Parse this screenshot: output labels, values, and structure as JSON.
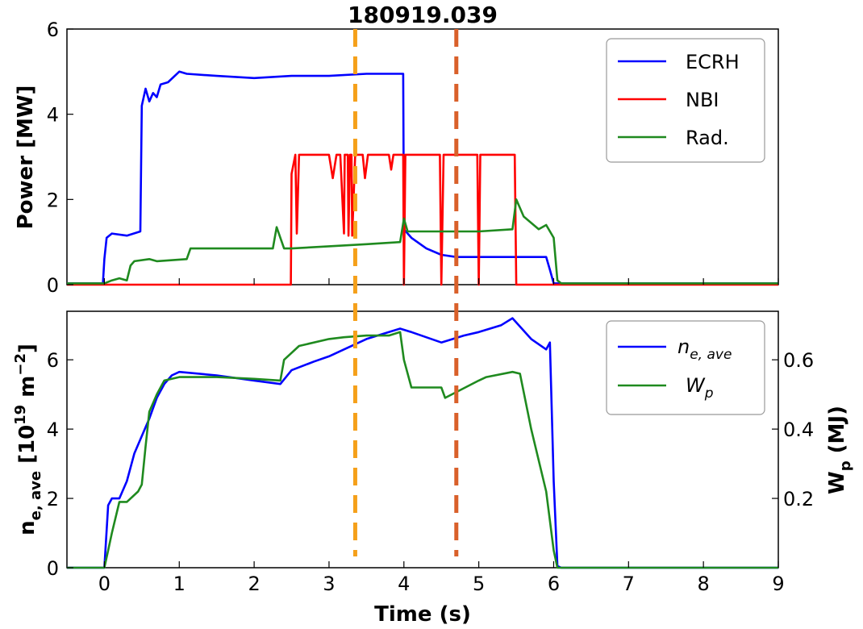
{
  "chart_data": [
    {
      "type": "line",
      "title": "180919.039",
      "xlabel": "",
      "ylabel": "Power [MW]",
      "xlim": [
        -0.5,
        9
      ],
      "ylim": [
        0,
        6
      ],
      "xticks": [
        "0",
        "1",
        "2",
        "3",
        "4",
        "5",
        "6",
        "7",
        "8",
        "9"
      ],
      "yticks": [
        "0",
        "2",
        "4",
        "6"
      ],
      "legend_position": "top-right",
      "legend": [
        "ECRH",
        "NBI",
        "Rad."
      ],
      "grid": false,
      "series": [
        {
          "name": "ECRH",
          "color": "#0000ff",
          "x": [
            -0.5,
            -0.02,
            0.0,
            0.03,
            0.1,
            0.3,
            0.48,
            0.5,
            0.55,
            0.6,
            0.65,
            0.7,
            0.75,
            0.85,
            1.0,
            1.1,
            1.5,
            2.0,
            2.5,
            3.0,
            3.5,
            3.99,
            4.0,
            4.1,
            4.3,
            4.5,
            4.7,
            5.0,
            5.5,
            5.9,
            5.95,
            6.0,
            6.2,
            7,
            8,
            9
          ],
          "y": [
            0.03,
            0.03,
            0.6,
            1.1,
            1.2,
            1.15,
            1.25,
            4.2,
            4.6,
            4.3,
            4.5,
            4.4,
            4.7,
            4.75,
            5.0,
            4.95,
            4.9,
            4.85,
            4.9,
            4.9,
            4.95,
            4.95,
            1.3,
            1.1,
            0.85,
            0.7,
            0.65,
            0.65,
            0.65,
            0.65,
            0.35,
            0.03,
            0.03,
            0.03,
            0.03,
            0.03
          ]
        },
        {
          "name": "NBI",
          "color": "#ff0000",
          "x": [
            -0.5,
            2.49,
            2.5,
            2.55,
            2.57,
            2.6,
            2.65,
            3.0,
            3.05,
            3.1,
            3.15,
            3.2,
            3.21,
            3.25,
            3.26,
            3.28,
            3.3,
            3.31,
            3.35,
            3.45,
            3.48,
            3.52,
            3.8,
            3.83,
            3.86,
            3.99,
            4.0,
            4.02,
            4.48,
            4.5,
            4.53,
            4.98,
            5.0,
            5.02,
            5.48,
            5.5,
            6.0,
            9
          ],
          "y": [
            0.0,
            0.0,
            2.6,
            3.05,
            1.2,
            3.05,
            3.05,
            3.05,
            2.5,
            3.05,
            3.05,
            1.2,
            3.05,
            3.05,
            1.15,
            3.05,
            3.05,
            1.15,
            3.05,
            3.05,
            2.5,
            3.05,
            3.05,
            2.7,
            3.05,
            3.05,
            0.0,
            3.05,
            3.05,
            0.0,
            3.05,
            3.05,
            0.0,
            3.05,
            3.05,
            0.0,
            0.0,
            0.0
          ]
        },
        {
          "name": "Rad.",
          "color": "#1f8a1f",
          "x": [
            -0.5,
            0.0,
            0.1,
            0.2,
            0.3,
            0.35,
            0.4,
            0.6,
            0.7,
            1.1,
            1.15,
            1.5,
            2.0,
            2.25,
            2.3,
            2.4,
            2.5,
            3.0,
            3.5,
            3.95,
            4.0,
            4.05,
            4.2,
            4.5,
            5.0,
            5.45,
            5.5,
            5.6,
            5.8,
            5.9,
            6.0,
            6.05,
            6.1,
            7,
            8,
            9
          ],
          "y": [
            0.03,
            0.03,
            0.1,
            0.15,
            0.1,
            0.45,
            0.55,
            0.6,
            0.55,
            0.6,
            0.85,
            0.85,
            0.85,
            0.85,
            1.35,
            0.85,
            0.85,
            0.9,
            0.95,
            1.0,
            1.55,
            1.25,
            1.25,
            1.25,
            1.25,
            1.3,
            2.0,
            1.6,
            1.3,
            1.4,
            1.1,
            0.1,
            0.03,
            0.03,
            0.03,
            0.03
          ]
        }
      ],
      "markers": [
        {
          "x": 3.35,
          "color": "#f5a01a"
        },
        {
          "x": 4.7,
          "color": "#d9602a"
        }
      ]
    },
    {
      "type": "line",
      "xlabel": "Time (s)",
      "ylabel": "n_e,ave [10^19 m^-2]",
      "ylabel_right": "W_p (MJ)",
      "xlim": [
        -0.5,
        9
      ],
      "ylim": [
        0,
        7.4
      ],
      "ylim_right": [
        0,
        0.74
      ],
      "xticks": [
        "0",
        "1",
        "2",
        "3",
        "4",
        "5",
        "6",
        "7",
        "8",
        "9"
      ],
      "yticks": [
        "0",
        "2",
        "4",
        "6"
      ],
      "yticks_right": [
        "0.2",
        "0.4",
        "0.6"
      ],
      "legend_position": "top-right",
      "grid": false,
      "series": [
        {
          "name": "n_e,ave",
          "axis": "left",
          "color": "#0000ff",
          "x": [
            -0.5,
            0.0,
            0.05,
            0.1,
            0.2,
            0.3,
            0.4,
            0.5,
            0.6,
            0.7,
            0.8,
            0.9,
            1.0,
            1.5,
            2.0,
            2.35,
            2.5,
            2.8,
            3.0,
            3.2,
            3.5,
            3.8,
            3.95,
            4.1,
            4.5,
            4.8,
            5.0,
            5.3,
            5.45,
            5.7,
            5.9,
            5.95,
            6.0,
            6.05,
            6.1,
            7,
            8,
            9
          ],
          "y": [
            0.0,
            0.0,
            1.8,
            2.0,
            2.0,
            2.5,
            3.3,
            3.8,
            4.3,
            4.9,
            5.3,
            5.55,
            5.65,
            5.55,
            5.4,
            5.3,
            5.7,
            5.95,
            6.1,
            6.3,
            6.6,
            6.8,
            6.9,
            6.8,
            6.5,
            6.7,
            6.8,
            7.0,
            7.2,
            6.6,
            6.3,
            6.5,
            2.5,
            0.05,
            0.0,
            0.0,
            0.0,
            0.0
          ]
        },
        {
          "name": "W_p",
          "axis": "right",
          "color": "#1f8a1f",
          "x": [
            -0.5,
            0.0,
            0.05,
            0.1,
            0.2,
            0.3,
            0.45,
            0.5,
            0.55,
            0.6,
            0.7,
            0.8,
            1.0,
            1.5,
            2.0,
            2.35,
            2.4,
            2.6,
            3.0,
            3.2,
            3.5,
            3.8,
            3.95,
            4.0,
            4.1,
            4.5,
            4.55,
            5.0,
            5.1,
            5.45,
            5.55,
            5.7,
            5.9,
            6.0,
            6.05,
            7,
            8,
            9
          ],
          "y": [
            0.0,
            0.0,
            0.05,
            0.1,
            0.19,
            0.19,
            0.22,
            0.24,
            0.35,
            0.45,
            0.5,
            0.54,
            0.55,
            0.55,
            0.545,
            0.54,
            0.6,
            0.64,
            0.66,
            0.665,
            0.67,
            0.67,
            0.68,
            0.6,
            0.52,
            0.52,
            0.49,
            0.54,
            0.55,
            0.565,
            0.56,
            0.4,
            0.22,
            0.05,
            0.0,
            0.0,
            0.0,
            0.0
          ]
        }
      ],
      "markers": [
        {
          "x": 3.35,
          "color": "#f5a01a"
        },
        {
          "x": 4.7,
          "color": "#d9602a"
        }
      ]
    }
  ]
}
